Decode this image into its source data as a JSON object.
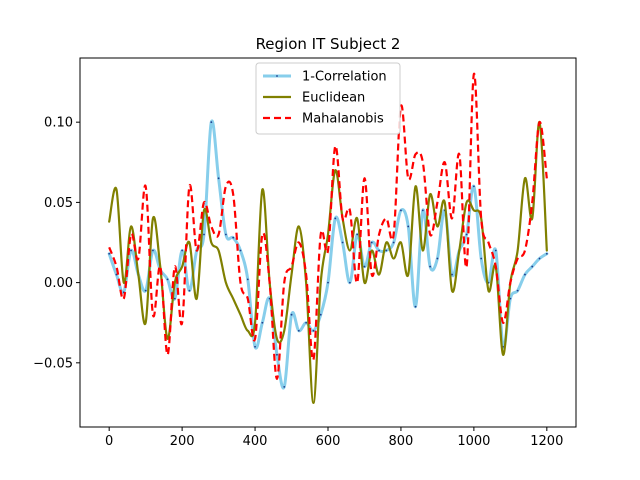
{
  "chart_data": {
    "type": "line",
    "title": "Region IT Subject 2",
    "xlabel": "",
    "ylabel": "",
    "xlim": [
      -80,
      1280
    ],
    "ylim": [
      -0.09,
      0.14
    ],
    "xticks": [
      0,
      200,
      400,
      600,
      800,
      1000,
      1200
    ],
    "yticks": [
      -0.05,
      0.0,
      0.05,
      0.1
    ],
    "ytick_labels": [
      "−0.05",
      "0.00",
      "0.05",
      "0.10"
    ],
    "grid": false,
    "legend_position": "top-center",
    "series": [
      {
        "name": "1-Correlation",
        "color": "#87CEEB",
        "style": "solid-with-points",
        "x": [
          0,
          20,
          40,
          60,
          80,
          100,
          120,
          140,
          160,
          180,
          200,
          220,
          240,
          260,
          280,
          300,
          320,
          340,
          360,
          380,
          400,
          420,
          440,
          460,
          480,
          500,
          520,
          540,
          560,
          580,
          600,
          620,
          640,
          660,
          680,
          700,
          720,
          740,
          760,
          780,
          800,
          820,
          840,
          860,
          880,
          900,
          920,
          940,
          960,
          980,
          1000,
          1020,
          1040,
          1060,
          1080,
          1100,
          1120,
          1140,
          1160,
          1180,
          1200
        ],
        "y": [
          0.018,
          0.005,
          -0.006,
          0.02,
          0.005,
          -0.005,
          0.02,
          0.008,
          0.002,
          -0.01,
          0.02,
          -0.005,
          0.02,
          0.03,
          0.1,
          0.065,
          0.03,
          0.028,
          0.02,
          0.002,
          -0.04,
          -0.025,
          -0.01,
          -0.045,
          -0.065,
          -0.02,
          -0.03,
          -0.025,
          -0.03,
          -0.02,
          0.0,
          0.04,
          0.025,
          0.0,
          0.03,
          0.01,
          0.025,
          0.02,
          0.02,
          0.025,
          0.045,
          0.035,
          -0.015,
          0.045,
          0.01,
          0.015,
          0.045,
          0.005,
          0.02,
          0.03,
          0.06,
          0.015,
          0.0,
          0.02,
          -0.04,
          -0.01,
          -0.005,
          0.005,
          0.01,
          0.015,
          0.018
        ]
      },
      {
        "name": "Euclidean",
        "color": "#808000",
        "style": "solid",
        "x": [
          0,
          20,
          40,
          60,
          80,
          100,
          120,
          140,
          160,
          180,
          200,
          220,
          240,
          260,
          280,
          300,
          320,
          340,
          360,
          380,
          400,
          420,
          440,
          460,
          480,
          500,
          520,
          540,
          560,
          580,
          600,
          620,
          640,
          660,
          680,
          700,
          720,
          740,
          760,
          780,
          800,
          820,
          840,
          860,
          880,
          900,
          920,
          940,
          960,
          980,
          1000,
          1020,
          1040,
          1060,
          1080,
          1100,
          1120,
          1140,
          1160,
          1180,
          1200
        ],
        "y": [
          0.038,
          0.058,
          0.0,
          0.035,
          0.005,
          -0.025,
          0.04,
          0.01,
          -0.035,
          0.0,
          0.01,
          0.025,
          -0.01,
          0.045,
          0.025,
          0.02,
          0.0,
          -0.01,
          -0.02,
          -0.03,
          -0.025,
          0.058,
          0.0,
          -0.035,
          -0.03,
          0.005,
          0.035,
          0.0,
          -0.075,
          0.0,
          0.03,
          0.07,
          0.04,
          0.02,
          0.04,
          0.0,
          0.02,
          0.005,
          0.025,
          0.015,
          0.025,
          0.005,
          0.06,
          0.02,
          0.055,
          0.035,
          0.05,
          -0.005,
          0.02,
          0.05,
          0.045,
          0.04,
          -0.005,
          0.01,
          -0.045,
          0.0,
          0.02,
          0.065,
          0.04,
          0.1,
          0.02
        ]
      },
      {
        "name": "Mahalanobis",
        "color": "#FF0000",
        "style": "dashed",
        "x": [
          0,
          20,
          40,
          60,
          80,
          100,
          120,
          140,
          160,
          180,
          200,
          220,
          240,
          260,
          280,
          300,
          320,
          340,
          360,
          380,
          400,
          420,
          440,
          460,
          480,
          500,
          520,
          540,
          560,
          580,
          600,
          620,
          640,
          660,
          680,
          700,
          720,
          740,
          760,
          780,
          800,
          820,
          840,
          860,
          880,
          900,
          920,
          940,
          960,
          980,
          1000,
          1020,
          1040,
          1060,
          1080,
          1100,
          1120,
          1140,
          1160,
          1180,
          1200
        ],
        "y": [
          0.022,
          0.01,
          -0.01,
          0.03,
          0.015,
          0.06,
          -0.02,
          0.01,
          -0.045,
          0.01,
          -0.025,
          0.06,
          0.02,
          0.05,
          0.035,
          0.03,
          0.06,
          0.055,
          0.0,
          -0.01,
          -0.035,
          0.03,
          0.0,
          -0.06,
          0.0,
          0.01,
          0.025,
          0.005,
          -0.048,
          0.03,
          0.02,
          0.085,
          0.04,
          0.045,
          0.0,
          0.065,
          0.005,
          0.03,
          0.04,
          0.03,
          0.11,
          0.065,
          0.08,
          0.075,
          0.03,
          0.05,
          0.075,
          0.04,
          0.08,
          0.01,
          0.13,
          0.04,
          0.025,
          0.01,
          -0.025,
          0.0,
          0.015,
          0.02,
          0.05,
          0.1,
          0.065
        ]
      }
    ]
  }
}
